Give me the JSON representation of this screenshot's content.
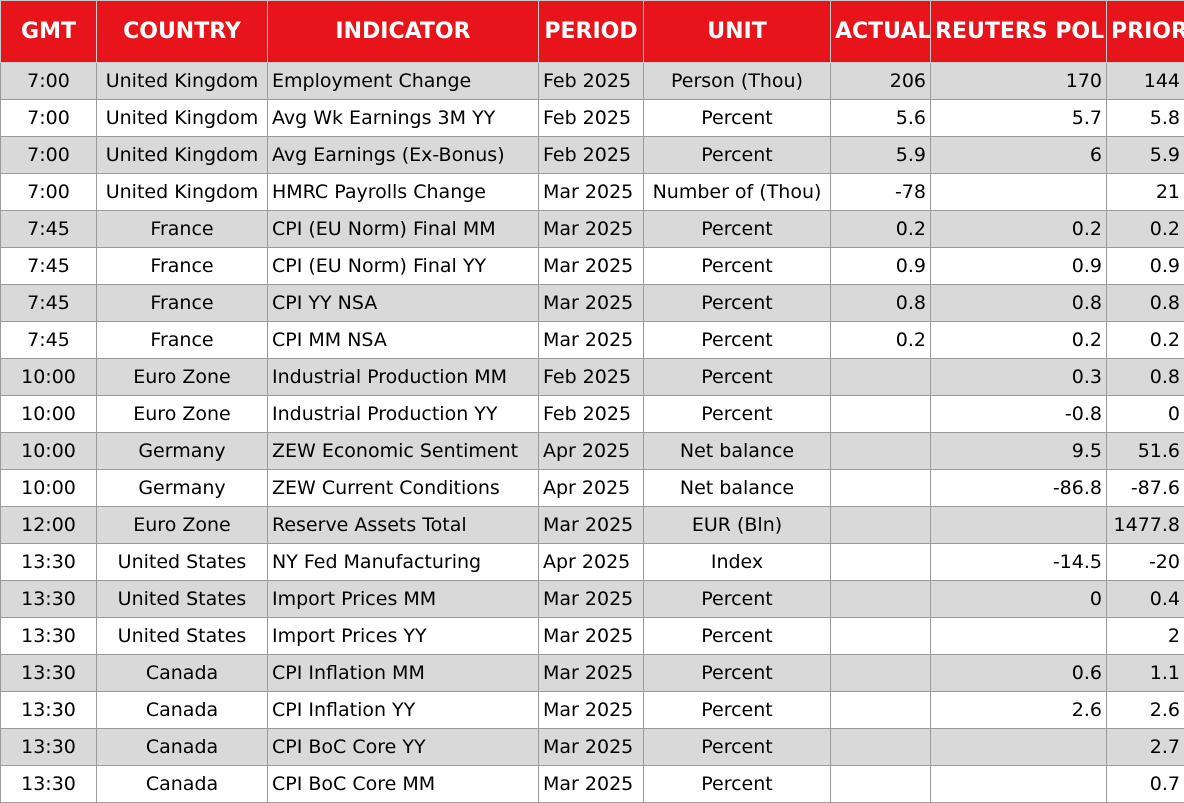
{
  "table": {
    "headers": [
      "GMT",
      "COUNTRY",
      "INDICATOR",
      "PERIOD",
      "UNIT",
      "ACTUAL",
      "REUTERS POLL",
      "PRIOR"
    ],
    "colors": {
      "header_bg": "#e8141c",
      "header_text": "#ffffff",
      "shaded_row": "#d9d9d9",
      "plain_row": "#ffffff"
    },
    "rows": [
      {
        "gmt": "7:00",
        "country": "United Kingdom",
        "indicator": "Employment Change",
        "period": "Feb 2025",
        "unit": "Person (Thou)",
        "actual": "206",
        "poll": "170",
        "prior": "144"
      },
      {
        "gmt": "7:00",
        "country": "United Kingdom",
        "indicator": "Avg Wk Earnings 3M YY",
        "period": "Feb 2025",
        "unit": "Percent",
        "actual": "5.6",
        "poll": "5.7",
        "prior": "5.8"
      },
      {
        "gmt": "7:00",
        "country": "United Kingdom",
        "indicator": "Avg Earnings (Ex-Bonus)",
        "period": "Feb 2025",
        "unit": "Percent",
        "actual": "5.9",
        "poll": "6",
        "prior": "5.9"
      },
      {
        "gmt": "7:00",
        "country": "United Kingdom",
        "indicator": "HMRC Payrolls Change",
        "period": "Mar 2025",
        "unit": "Number of (Thou)",
        "actual": "-78",
        "poll": "",
        "prior": "21"
      },
      {
        "gmt": "7:45",
        "country": "France",
        "indicator": "CPI (EU Norm) Final MM",
        "period": "Mar 2025",
        "unit": "Percent",
        "actual": "0.2",
        "poll": "0.2",
        "prior": "0.2"
      },
      {
        "gmt": "7:45",
        "country": "France",
        "indicator": "CPI (EU Norm) Final YY",
        "period": "Mar 2025",
        "unit": "Percent",
        "actual": "0.9",
        "poll": "0.9",
        "prior": "0.9"
      },
      {
        "gmt": "7:45",
        "country": "France",
        "indicator": "CPI YY NSA",
        "period": "Mar 2025",
        "unit": "Percent",
        "actual": "0.8",
        "poll": "0.8",
        "prior": "0.8"
      },
      {
        "gmt": "7:45",
        "country": "France",
        "indicator": "CPI MM NSA",
        "period": "Mar 2025",
        "unit": "Percent",
        "actual": "0.2",
        "poll": "0.2",
        "prior": "0.2"
      },
      {
        "gmt": "10:00",
        "country": "Euro Zone",
        "indicator": "Industrial Production MM",
        "period": "Feb 2025",
        "unit": "Percent",
        "actual": "",
        "poll": "0.3",
        "prior": "0.8"
      },
      {
        "gmt": "10:00",
        "country": "Euro Zone",
        "indicator": "Industrial Production YY",
        "period": "Feb 2025",
        "unit": "Percent",
        "actual": "",
        "poll": "-0.8",
        "prior": "0"
      },
      {
        "gmt": "10:00",
        "country": "Germany",
        "indicator": "ZEW Economic Sentiment",
        "period": "Apr 2025",
        "unit": "Net balance",
        "actual": "",
        "poll": "9.5",
        "prior": "51.6"
      },
      {
        "gmt": "10:00",
        "country": "Germany",
        "indicator": "ZEW Current Conditions",
        "period": "Apr 2025",
        "unit": "Net balance",
        "actual": "",
        "poll": "-86.8",
        "prior": "-87.6"
      },
      {
        "gmt": "12:00",
        "country": "Euro Zone",
        "indicator": "Reserve Assets Total",
        "period": "Mar 2025",
        "unit": "EUR (Bln)",
        "actual": "",
        "poll": "",
        "prior": "1477.8"
      },
      {
        "gmt": "13:30",
        "country": "United States",
        "indicator": "NY Fed Manufacturing",
        "period": "Apr 2025",
        "unit": "Index",
        "actual": "",
        "poll": "-14.5",
        "prior": "-20"
      },
      {
        "gmt": "13:30",
        "country": "United States",
        "indicator": "Import Prices MM",
        "period": "Mar 2025",
        "unit": "Percent",
        "actual": "",
        "poll": "0",
        "prior": "0.4"
      },
      {
        "gmt": "13:30",
        "country": "United States",
        "indicator": "Import Prices YY",
        "period": "Mar 2025",
        "unit": "Percent",
        "actual": "",
        "poll": "",
        "prior": "2"
      },
      {
        "gmt": "13:30",
        "country": "Canada",
        "indicator": "CPI Inflation MM",
        "period": "Mar 2025",
        "unit": "Percent",
        "actual": "",
        "poll": "0.6",
        "prior": "1.1"
      },
      {
        "gmt": "13:30",
        "country": "Canada",
        "indicator": "CPI Inflation YY",
        "period": "Mar 2025",
        "unit": "Percent",
        "actual": "",
        "poll": "2.6",
        "prior": "2.6"
      },
      {
        "gmt": "13:30",
        "country": "Canada",
        "indicator": "CPI BoC Core YY",
        "period": "Mar 2025",
        "unit": "Percent",
        "actual": "",
        "poll": "",
        "prior": "2.7"
      },
      {
        "gmt": "13:30",
        "country": "Canada",
        "indicator": "CPI BoC Core MM",
        "period": "Mar 2025",
        "unit": "Percent",
        "actual": "",
        "poll": "",
        "prior": "0.7"
      }
    ]
  }
}
